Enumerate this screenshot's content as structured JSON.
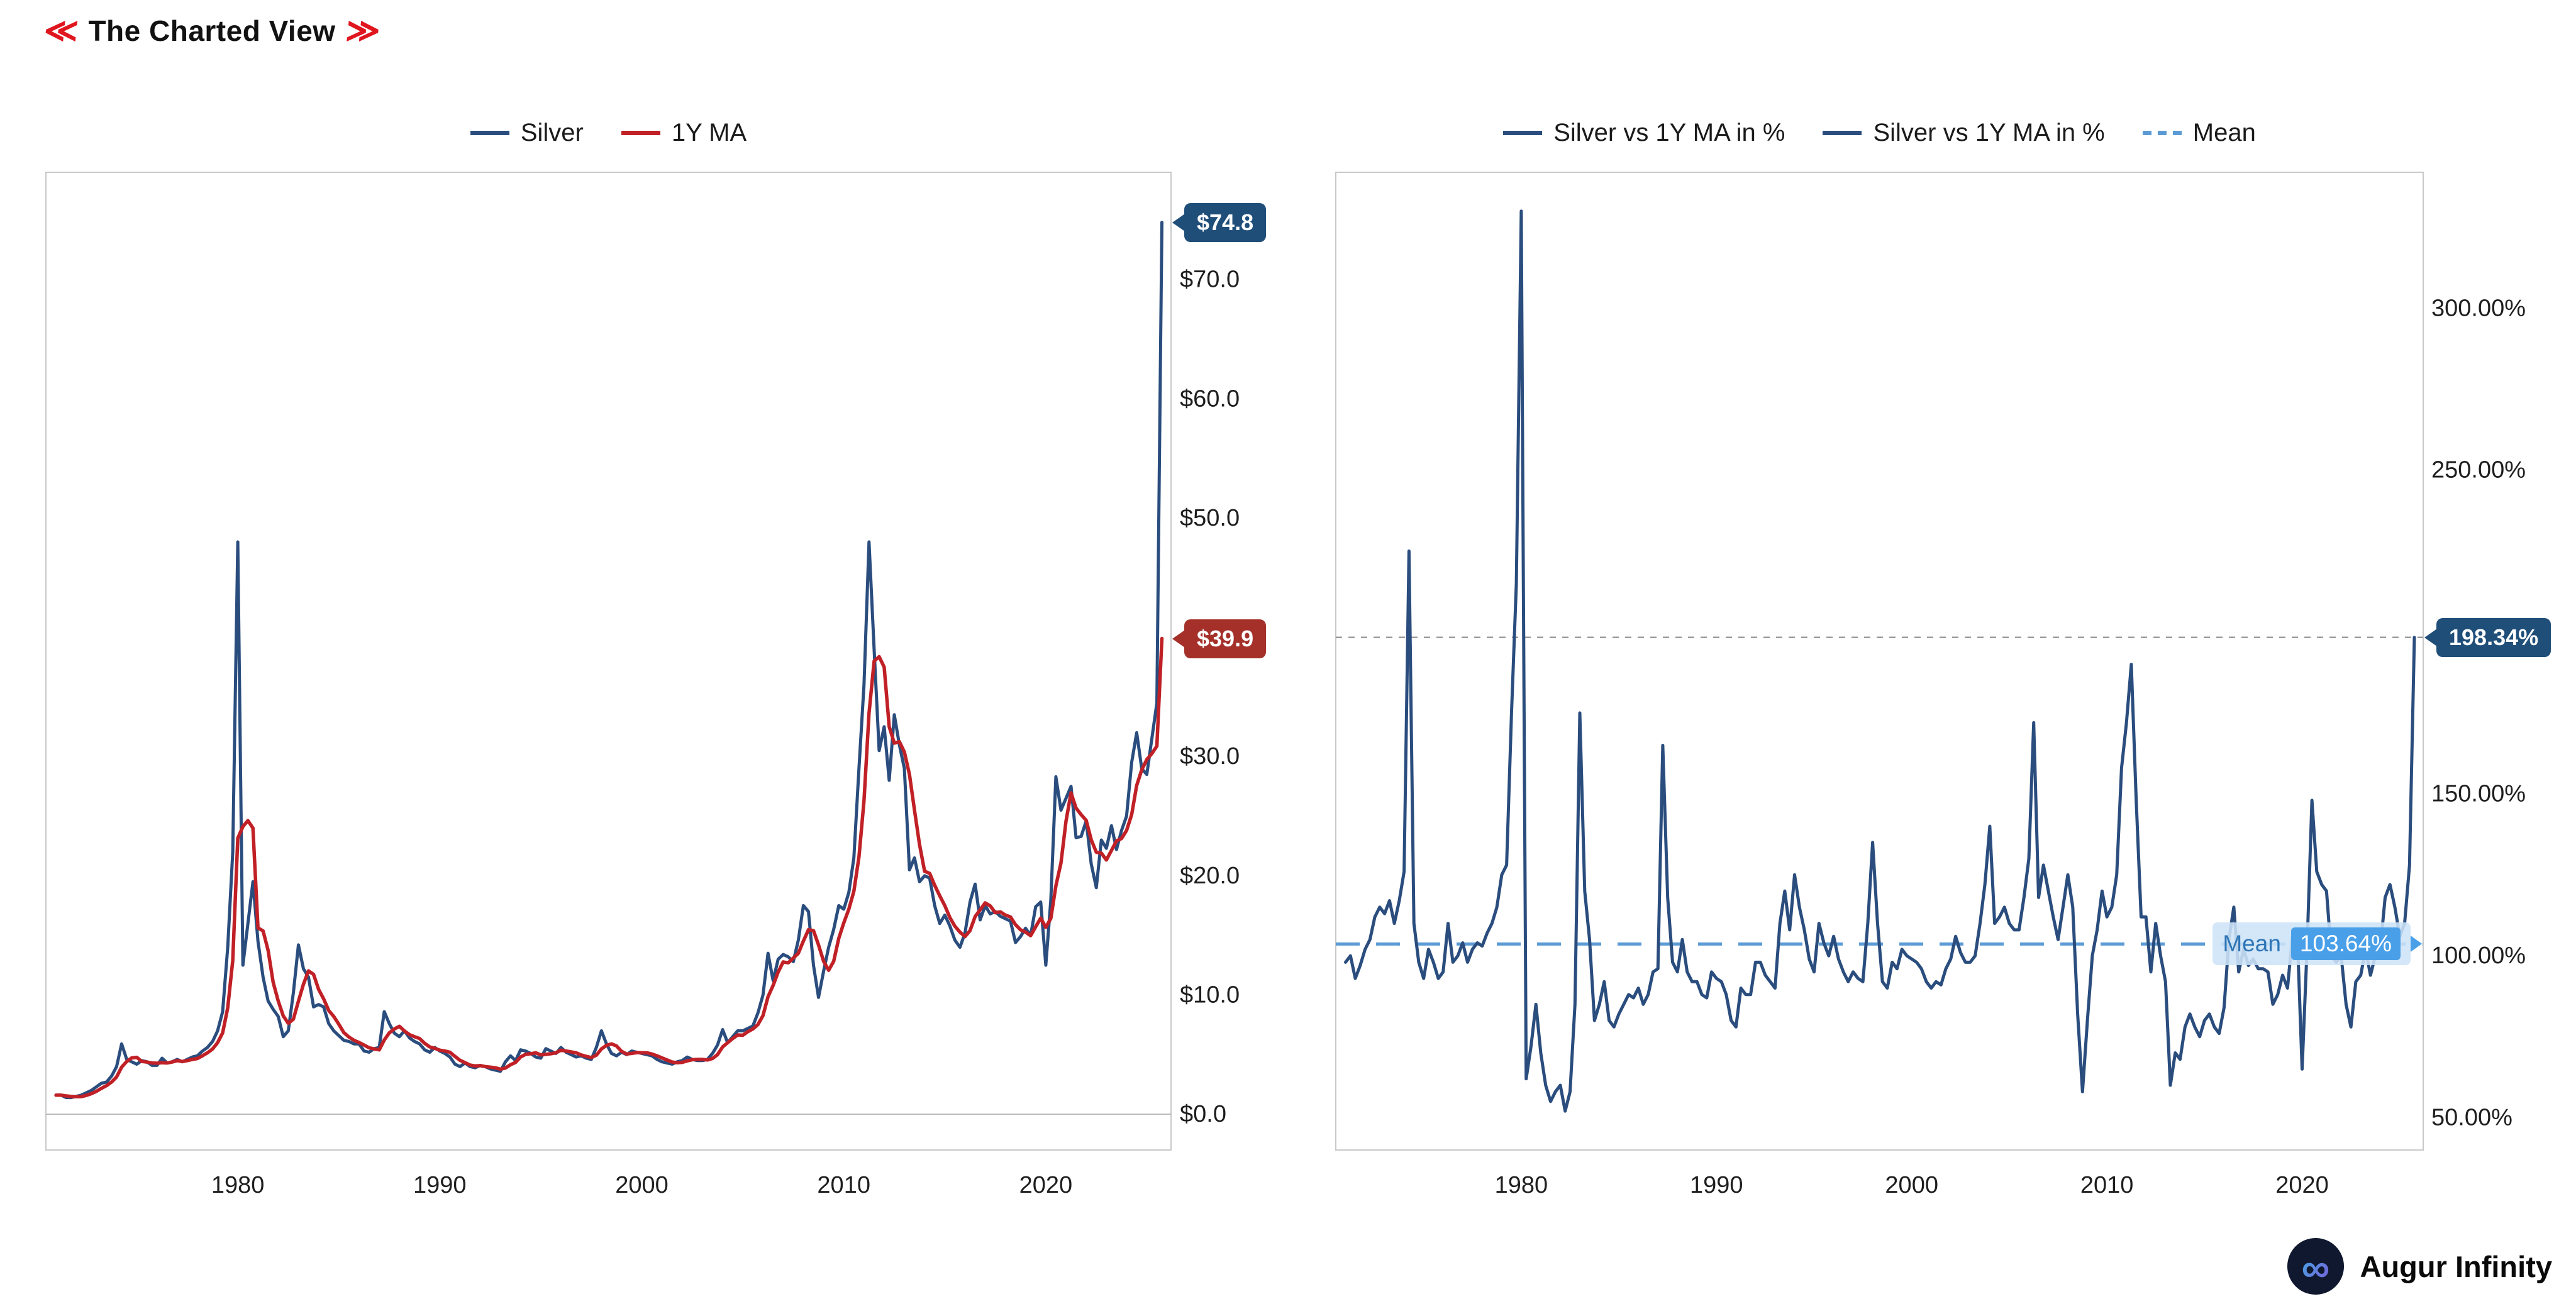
{
  "header": {
    "left_chevrons": "≪",
    "title": "The Charted View",
    "right_chevrons": "≫"
  },
  "footer": {
    "brand": "Augur Infinity",
    "logo_glyph": "∞"
  },
  "chart_data": [
    {
      "id": "silver-price",
      "type": "line",
      "title": "Silver price with 1Y moving average",
      "x_start": 1971.0,
      "x_step": 0.25,
      "xlim": [
        1970.5,
        2026.2
      ],
      "ylim": [
        -3,
        79
      ],
      "x_ticks": [
        {
          "v": 1980,
          "label": "1980"
        },
        {
          "v": 1990,
          "label": "1990"
        },
        {
          "v": 2000,
          "label": "2000"
        },
        {
          "v": 2010,
          "label": "2010"
        },
        {
          "v": 2020,
          "label": "2020"
        }
      ],
      "y_ticks": [
        {
          "v": 0,
          "label": "$0.0"
        },
        {
          "v": 10,
          "label": "$10.0"
        },
        {
          "v": 20,
          "label": "$20.0"
        },
        {
          "v": 30,
          "label": "$30.0"
        },
        {
          "v": 50,
          "label": "$50.0"
        },
        {
          "v": 60,
          "label": "$60.0"
        },
        {
          "v": 70,
          "label": "$70.0"
        }
      ],
      "zero_line": 0,
      "legend": [
        {
          "label": "Silver",
          "color": "#2a4d7e",
          "dash": false
        },
        {
          "label": "1Y MA",
          "color": "#c02026",
          "dash": false
        }
      ],
      "series": [
        {
          "name": "Silver",
          "color": "#2a4d7e",
          "values": [
            1.6,
            1.6,
            1.4,
            1.4,
            1.5,
            1.6,
            1.8,
            2.0,
            2.3,
            2.6,
            2.7,
            3.2,
            4.0,
            5.9,
            4.6,
            4.4,
            4.2,
            4.5,
            4.4,
            4.1,
            4.1,
            4.7,
            4.3,
            4.4,
            4.6,
            4.4,
            4.6,
            4.8,
            4.9,
            5.3,
            5.6,
            6.1,
            7.0,
            8.6,
            14.0,
            22.0,
            48.0,
            12.5,
            16.0,
            19.5,
            14.5,
            11.5,
            9.5,
            8.8,
            8.2,
            6.5,
            7.0,
            10.2,
            14.2,
            12.2,
            11.5,
            9.0,
            9.2,
            9.0,
            7.6,
            7.0,
            6.6,
            6.2,
            6.1,
            5.9,
            5.9,
            5.3,
            5.2,
            5.5,
            5.6,
            8.6,
            7.6,
            6.8,
            6.5,
            7.0,
            6.4,
            6.1,
            5.9,
            5.4,
            5.2,
            5.6,
            5.3,
            5.1,
            4.8,
            4.2,
            4.0,
            4.3,
            4.0,
            3.9,
            4.1,
            4.0,
            3.8,
            3.7,
            3.6,
            4.4,
            4.9,
            4.5,
            5.4,
            5.3,
            5.1,
            4.8,
            4.7,
            5.5,
            5.3,
            5.1,
            5.6,
            5.2,
            5.0,
            4.8,
            4.9,
            4.7,
            4.6,
            5.6,
            7.0,
            5.9,
            5.1,
            4.9,
            5.2,
            5.0,
            5.3,
            5.2,
            5.1,
            5.0,
            4.9,
            4.6,
            4.4,
            4.3,
            4.2,
            4.4,
            4.5,
            4.8,
            4.6,
            4.5,
            4.5,
            4.6,
            5.1,
            5.8,
            7.1,
            6.0,
            6.5,
            7.0,
            7.0,
            7.2,
            7.4,
            8.5,
            10.0,
            13.5,
            11.2,
            13.0,
            13.4,
            13.2,
            12.8,
            14.6,
            17.5,
            17.0,
            12.5,
            9.8,
            12.0,
            14.0,
            15.5,
            17.5,
            17.2,
            18.6,
            21.5,
            29.0,
            36.0,
            48.0,
            39.0,
            30.5,
            32.5,
            28.0,
            33.5,
            31.0,
            29.0,
            20.5,
            21.5,
            19.5,
            20.0,
            19.8,
            17.5,
            16.0,
            16.7,
            15.8,
            14.6,
            14.0,
            15.2,
            17.8,
            19.3,
            16.3,
            17.5,
            16.8,
            17.0,
            16.6,
            16.4,
            16.2,
            14.4,
            14.9,
            15.6,
            15.0,
            17.4,
            17.8,
            12.5,
            18.0,
            28.3,
            25.5,
            26.5,
            27.5,
            23.2,
            23.3,
            24.6,
            21.0,
            19.0,
            23.0,
            22.3,
            24.2,
            22.2,
            23.8,
            25.0,
            29.5,
            32.0,
            29.0,
            28.5,
            31.5,
            34.5,
            74.8
          ]
        },
        {
          "name": "1Y MA",
          "color": "#c02026",
          "derived": "trailing_1y_mean_of_silver",
          "last_value": 39.9
        }
      ],
      "annotations": {
        "last_price": {
          "value": 74.8,
          "label": "$74.8",
          "color": "#1f4e79"
        },
        "last_ma": {
          "value": 39.9,
          "label": "$39.9",
          "color": "#a5302a"
        }
      }
    },
    {
      "id": "silver-vs-ma",
      "type": "line",
      "title": "Silver vs 1Y MA in %",
      "x_start": 1971.0,
      "x_step": 0.25,
      "xlim": [
        1970.5,
        2026.2
      ],
      "ylim": [
        40,
        342
      ],
      "x_ticks": [
        {
          "v": 1980,
          "label": "1980"
        },
        {
          "v": 1990,
          "label": "1990"
        },
        {
          "v": 2000,
          "label": "2000"
        },
        {
          "v": 2010,
          "label": "2010"
        },
        {
          "v": 2020,
          "label": "2020"
        }
      ],
      "y_ticks": [
        {
          "v": 50,
          "label": "50.00%"
        },
        {
          "v": 100,
          "label": "100.00%"
        },
        {
          "v": 150,
          "label": "150.00%"
        },
        {
          "v": 250,
          "label": "250.00%"
        },
        {
          "v": 300,
          "label": "300.00%"
        }
      ],
      "mean": 103.64,
      "legend": [
        {
          "label": "Silver vs 1Y MA in %",
          "color": "#2a4d7e",
          "dash": false
        },
        {
          "label": "Silver vs 1Y MA in %",
          "color": "#2a4d7e",
          "dash": false
        },
        {
          "label": "Mean",
          "color": "#5b9bd5",
          "dash": true
        }
      ],
      "series": [
        {
          "name": "Silver vs 1Y MA in %",
          "color": "#2a4d7e",
          "values": [
            98,
            100,
            93,
            97,
            102,
            105,
            112,
            115,
            113,
            117,
            110,
            117,
            126,
            225,
            110,
            98,
            93,
            102,
            98,
            93,
            95,
            110,
            98,
            100,
            104,
            98,
            102,
            104,
            103,
            107,
            110,
            115,
            125,
            128,
            175,
            215,
            330,
            62,
            72,
            85,
            70,
            60,
            55,
            58,
            60,
            52,
            58,
            85,
            175,
            120,
            105,
            80,
            85,
            92,
            80,
            78,
            82,
            85,
            88,
            87,
            90,
            85,
            88,
            95,
            96,
            165,
            118,
            98,
            95,
            105,
            95,
            92,
            92,
            88,
            87,
            95,
            93,
            92,
            88,
            80,
            78,
            90,
            88,
            88,
            98,
            98,
            94,
            92,
            90,
            110,
            120,
            108,
            125,
            115,
            108,
            99,
            95,
            110,
            104,
            100,
            106,
            99,
            95,
            92,
            95,
            93,
            92,
            110,
            135,
            110,
            92,
            90,
            98,
            96,
            102,
            100,
            99,
            98,
            96,
            92,
            90,
            92,
            91,
            96,
            99,
            106,
            101,
            98,
            98,
            100,
            110,
            122,
            140,
            110,
            112,
            115,
            110,
            108,
            108,
            118,
            130,
            172,
            118,
            128,
            120,
            112,
            105,
            115,
            125,
            115,
            82,
            58,
            80,
            100,
            108,
            120,
            112,
            115,
            125,
            158,
            172,
            190,
            148,
            112,
            112,
            95,
            110,
            100,
            92,
            60,
            70,
            68,
            78,
            82,
            78,
            75,
            80,
            82,
            78,
            76,
            84,
            105,
            115,
            95,
            102,
            97,
            99,
            96,
            96,
            95,
            85,
            88,
            94,
            90,
            106,
            107,
            65,
            102,
            148,
            126,
            122,
            120,
            100,
            98,
            100,
            85,
            78,
            92,
            94,
            102,
            94,
            100,
            102,
            118,
            122,
            115,
            106,
            110,
            128,
            198.34
          ]
        }
      ],
      "annotations": {
        "last": {
          "value": 198.34,
          "label": "198.34%",
          "color": "#1f4e79"
        },
        "mean_tooltip": {
          "label": "Mean",
          "value_label": "103.64%"
        }
      }
    }
  ]
}
